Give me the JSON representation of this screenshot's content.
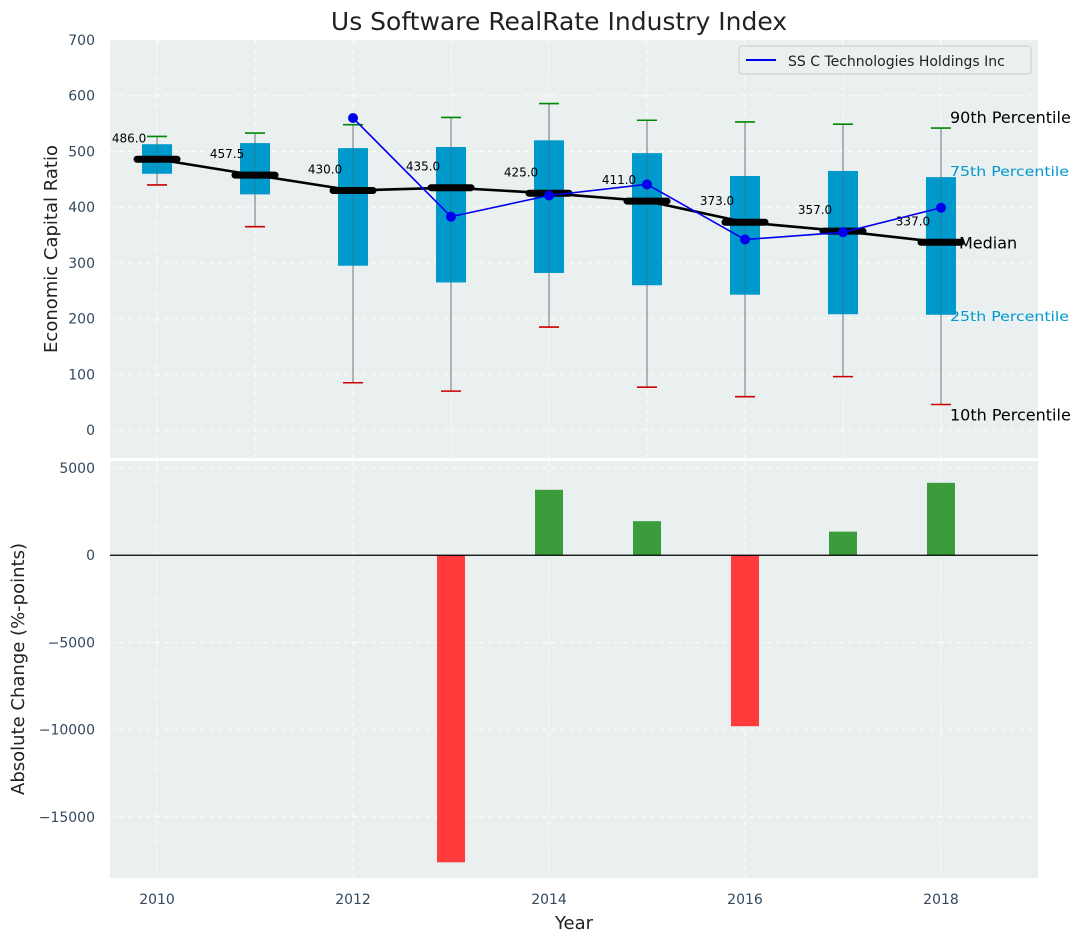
{
  "chart_data": [
    {
      "type": "box",
      "title": "Us Software RealRate Industry Index",
      "xlabel": "",
      "ylabel": "Economic Capital Ratio",
      "ylim": [
        -50,
        700
      ],
      "yticks": [
        0,
        100,
        200,
        300,
        400,
        500,
        600,
        700
      ],
      "x": [
        2010,
        2011,
        2012,
        2013,
        2014,
        2015,
        2016,
        2017,
        2018
      ],
      "p10": [
        440,
        365,
        85,
        70,
        185,
        77,
        60,
        96,
        46
      ],
      "p25": [
        460,
        423,
        295,
        265,
        282,
        260,
        243,
        208,
        207
      ],
      "median": [
        486,
        457.5,
        430,
        435,
        425,
        411,
        373,
        357,
        337
      ],
      "p75": [
        513,
        515,
        506,
        508,
        520,
        497,
        456,
        465,
        454
      ],
      "p90": [
        527,
        533,
        548,
        561,
        586,
        556,
        553,
        549,
        542
      ],
      "median_labels": [
        "486.0",
        "457.5",
        "430.0",
        "435.0",
        "425.0",
        "411.0",
        "373.0",
        "357.0",
        "337.0"
      ],
      "series": [
        {
          "name": "SS C Technologies Holdings Inc",
          "x": [
            2012,
            2013,
            2014,
            2015,
            2016,
            2017,
            2018
          ],
          "values": [
            560,
            383,
            421,
            441,
            342,
            355,
            399
          ],
          "color": "#0000ee"
        }
      ],
      "annotations": {
        "p90": "90th Percentile",
        "p75": "75th Percentile",
        "median": "Median",
        "p25": "25th Percentile",
        "p10": "10th Percentile"
      },
      "legend_position": "top-right",
      "grid": true,
      "colors": {
        "box": "#0099cc",
        "median_line": "#000000",
        "whisker_high": "#008800",
        "whisker_low": "#cc0000",
        "panel_bg": "#eaeff0"
      }
    },
    {
      "type": "bar",
      "xlabel": "Year",
      "ylabel": "Absolute Change (%-points)",
      "ylim": [
        -18500,
        5400
      ],
      "yticks": [
        5000,
        0,
        -5000,
        -10000,
        -15000
      ],
      "ytick_labels": [
        "5000",
        "0",
        "−5000",
        "−10000",
        "−15000"
      ],
      "x": [
        2013,
        2014,
        2015,
        2016,
        2017,
        2018
      ],
      "values": [
        -17600,
        3750,
        1950,
        -9800,
        1350,
        4150
      ],
      "xticks": [
        2010,
        2012,
        2014,
        2016,
        2018
      ],
      "xtick_labels": [
        "2010",
        "2012",
        "2014",
        "2016",
        "2018"
      ],
      "grid": true,
      "colors": {
        "positive": "#3a9c3a",
        "negative": "#ff3b3b"
      }
    }
  ]
}
